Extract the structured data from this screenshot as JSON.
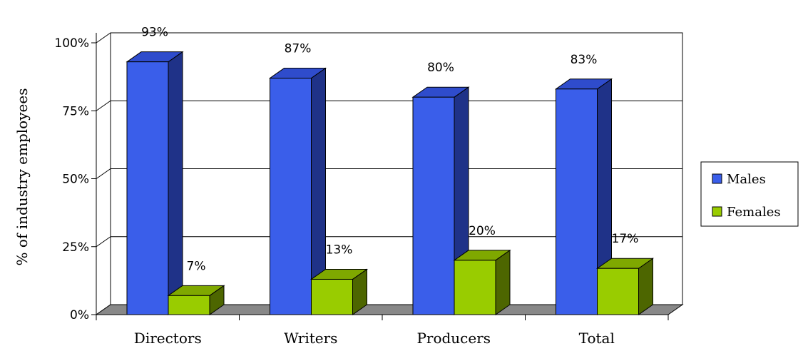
{
  "chart_data": {
    "type": "bar",
    "categories": [
      "Directors",
      "Writers",
      "Producers",
      "Total"
    ],
    "series": [
      {
        "name": "Males",
        "values": [
          93,
          87,
          80,
          83
        ],
        "labels": [
          "93%",
          "87%",
          "80%",
          "83%"
        ],
        "color": "#3a5eea",
        "side": "#1f3288",
        "top": "#2f4ccc"
      },
      {
        "name": "Females",
        "values": [
          7,
          13,
          20,
          17
        ],
        "labels": [
          "7%",
          "13%",
          "20%",
          "17%"
        ],
        "color": "#99cc00",
        "side": "#4d6600",
        "top": "#7fa800"
      }
    ],
    "ylabel": "% of industry employees",
    "ylim": [
      0,
      100
    ],
    "yticks": [
      0,
      25,
      50,
      75,
      100
    ],
    "ytick_labels": [
      "0%",
      "25%",
      "50%",
      "75%",
      "100%"
    ],
    "grid": true,
    "legend": "right",
    "floor_color": "#888888"
  }
}
